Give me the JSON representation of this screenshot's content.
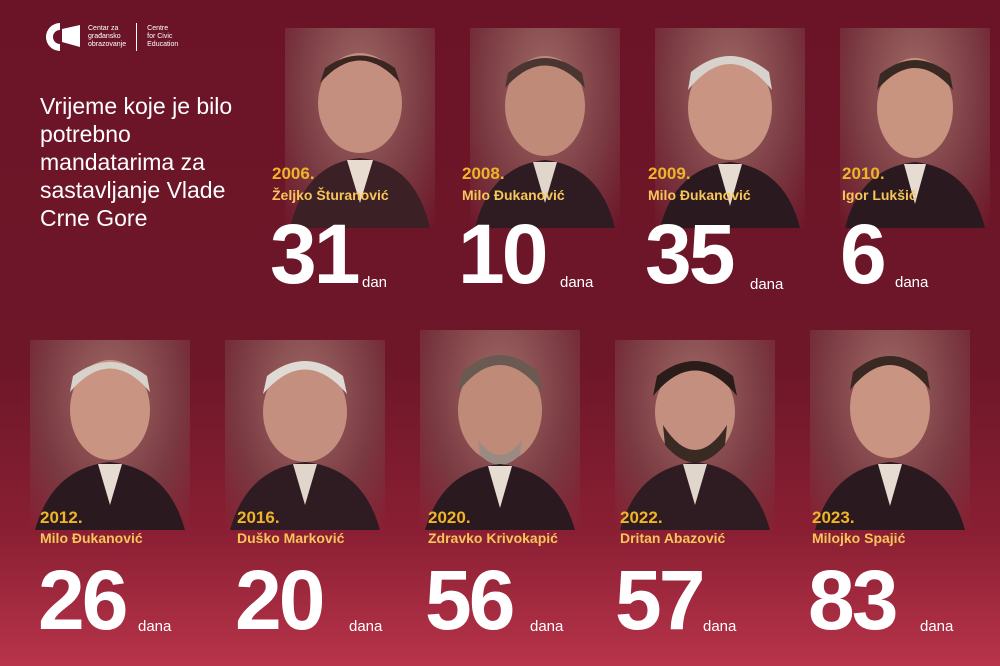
{
  "logo": {
    "line1": "Centar za",
    "line2": "građansko",
    "line3": "obrazovanje",
    "line4": "Centre",
    "line5": "for Civic",
    "line6": "Education"
  },
  "headline": "Vrijeme koje je bilo potrebno mandatarima za sastavljanje Vlade Crne Gore",
  "entries": [
    {
      "year": "2006.",
      "name": "Željko Šturanović",
      "days": "31",
      "unit": "dan"
    },
    {
      "year": "2008.",
      "name": "Milo Đukanović",
      "days": "10",
      "unit": "dana"
    },
    {
      "year": "2009.",
      "name": "Milo Đukanović",
      "days": "35",
      "unit": "dana"
    },
    {
      "year": "2010.",
      "name": "Igor Lukšić",
      "days": "6",
      "unit": "dana"
    },
    {
      "year": "2012.",
      "name": "Milo Đukanović",
      "days": "26",
      "unit": "dana"
    },
    {
      "year": "2016.",
      "name": "Duško Marković",
      "days": "20",
      "unit": "dana"
    },
    {
      "year": "2020.",
      "name": "Zdravko Krivokapić",
      "days": "56",
      "unit": "dana"
    },
    {
      "year": "2022.",
      "name": "Dritan Abazović",
      "days": "57",
      "unit": "dana"
    },
    {
      "year": "2023.",
      "name": "Milojko Spajić",
      "days": "83",
      "unit": "dana"
    }
  ],
  "colors": {
    "background": "#6e1729",
    "year": "#f0b429",
    "name": "#f7c55a",
    "number": "#ffffff"
  },
  "icons": [
    "cgo-logo-icon",
    "portrait-icon"
  ]
}
